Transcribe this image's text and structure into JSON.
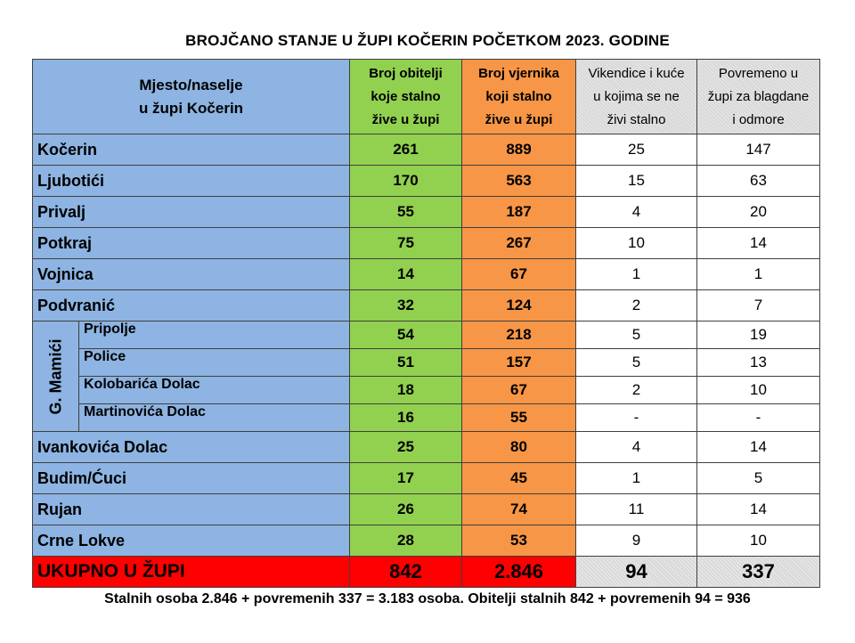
{
  "title": "BROJČANO STANJE U ŽUPI KOČERIN POČETKOM 2023. GODINE",
  "headers": {
    "location_line1": "Mjesto/naselje",
    "location_line2": "u župi Kočerin",
    "families_line1": "Broj obitelji",
    "families_line2": "koje stalno",
    "families_line3": "žive u župi",
    "believers_line1": "Broj vjernika",
    "believers_line2": "koji stalno",
    "believers_line3": "žive u župi",
    "cottages_line1": "Vikendice i kuće",
    "cottages_line2": "u kojima se ne",
    "cottages_line3": "živi stalno",
    "occasional_line1": "Povremeno u",
    "occasional_line2": "župi za blagdane",
    "occasional_line3": "i odmore"
  },
  "group_label": "G. Mamići",
  "rows": [
    {
      "place": "Kočerin",
      "families": "261",
      "believers": "889",
      "cottages": "25",
      "occasional": "147"
    },
    {
      "place": "Ljubotići",
      "families": "170",
      "believers": "563",
      "cottages": "15",
      "occasional": "63"
    },
    {
      "place": "Privalj",
      "families": "55",
      "believers": "187",
      "cottages": "4",
      "occasional": "20"
    },
    {
      "place": "Potkraj",
      "families": "75",
      "believers": "267",
      "cottages": "10",
      "occasional": "14"
    },
    {
      "place": "Vojnica",
      "families": "14",
      "believers": "67",
      "cottages": "1",
      "occasional": "1"
    },
    {
      "place": "Podvranić",
      "families": "32",
      "believers": "124",
      "cottages": "2",
      "occasional": "7"
    },
    {
      "place": "Pripolje",
      "families": "54",
      "believers": "218",
      "cottages": "5",
      "occasional": "19"
    },
    {
      "place": "Police",
      "families": "51",
      "believers": "157",
      "cottages": "5",
      "occasional": "13"
    },
    {
      "place": "Kolobarića  Dolac",
      "families": "18",
      "believers": "67",
      "cottages": "2",
      "occasional": "10"
    },
    {
      "place": "Martinovića  Dolac",
      "families": "16",
      "believers": "55",
      "cottages": "-",
      "occasional": "-"
    },
    {
      "place": "Ivankovića Dolac",
      "families": "25",
      "believers": "80",
      "cottages": "4",
      "occasional": "14"
    },
    {
      "place": "Budim/Ćuci",
      "families": "17",
      "believers": "45",
      "cottages": "1",
      "occasional": "5"
    },
    {
      "place": "Rujan",
      "families": "26",
      "believers": "74",
      "cottages": "11",
      "occasional": "14"
    },
    {
      "place": "Crne Lokve",
      "families": "28",
      "believers": "53",
      "cottages": "9",
      "occasional": "10"
    }
  ],
  "total": {
    "label": "UKUPNO U ŽUPI",
    "families": "842",
    "believers": "2.846",
    "cottages": "94",
    "occasional": "337"
  },
  "footer": "Stalnih  osoba  2.846 + povremenih  337 = 3.183 osoba.  Obitelji  stalnih  842 + povremenih  94 = 936",
  "colors": {
    "location": "#8db4e2",
    "families": "#92d050",
    "believers": "#f79646",
    "total": "#ff0000",
    "grey": "#d9d9d9"
  }
}
